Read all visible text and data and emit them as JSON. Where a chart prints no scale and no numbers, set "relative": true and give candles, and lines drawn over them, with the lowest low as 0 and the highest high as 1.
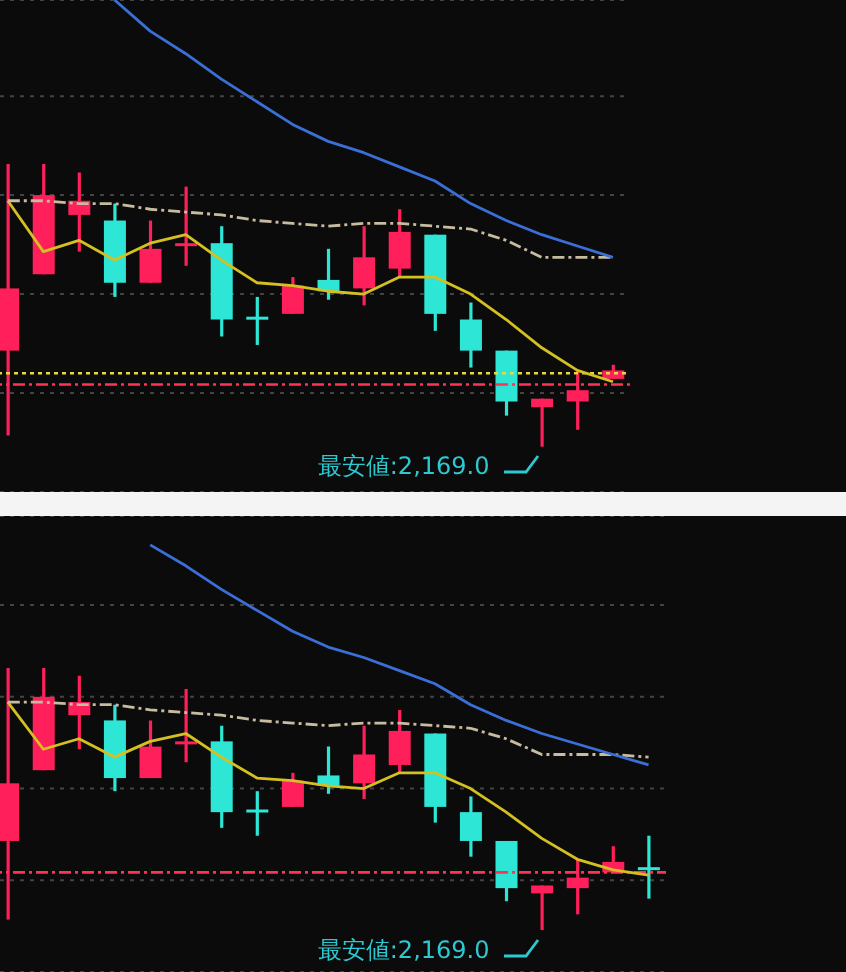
{
  "chart_data": [
    {
      "type": "candlestick",
      "relative": true,
      "grid": "y",
      "categories": [
        null,
        null,
        null,
        null,
        null,
        null,
        null,
        null,
        null,
        null,
        null,
        null,
        null,
        null,
        null,
        null,
        null,
        null
      ],
      "ohlc": [
        [
          0.34,
          1.0,
          0.04,
          0.56
        ],
        [
          0.61,
          1.0,
          0.61,
          0.89
        ],
        [
          0.82,
          0.97,
          0.69,
          0.87
        ],
        [
          0.8,
          0.86,
          0.53,
          0.58
        ],
        [
          0.58,
          0.8,
          0.58,
          0.7
        ],
        [
          0.71,
          0.92,
          0.64,
          0.72
        ],
        [
          0.72,
          0.78,
          0.39,
          0.45
        ],
        [
          0.46,
          0.53,
          0.36,
          0.45
        ],
        [
          0.47,
          0.6,
          0.47,
          0.57
        ],
        [
          0.59,
          0.7,
          0.52,
          0.55
        ],
        [
          0.56,
          0.78,
          0.5,
          0.67
        ],
        [
          0.63,
          0.84,
          0.6,
          0.76
        ],
        [
          0.75,
          0.75,
          0.41,
          0.47
        ],
        [
          0.45,
          0.51,
          0.28,
          0.34
        ],
        [
          0.34,
          0.34,
          0.11,
          0.16
        ],
        [
          0.14,
          0.17,
          0.0,
          0.17
        ],
        [
          0.16,
          0.27,
          0.06,
          0.2
        ],
        [
          0.24,
          0.29,
          0.24,
          0.27
        ]
      ],
      "colors": [
        "#ff1f5a",
        "#ff1f5a",
        "#ff1f5a",
        "#2ee6d6",
        "#ff1f5a",
        "#ff1f5a",
        "#2ee6d6",
        "#2ee6d6",
        "#ff1f5a",
        "#2ee6d6",
        "#ff1f5a",
        "#ff1f5a",
        "#2ee6d6",
        "#2ee6d6",
        "#2ee6d6",
        "#ff1f5a",
        "#ff1f5a",
        "#ff1f5a"
      ],
      "series": [
        {
          "type": "line",
          "color": "#d4c020",
          "line_style": "solid",
          "values": [
            0.87,
            0.69,
            0.73,
            0.66,
            0.72,
            0.75,
            0.66,
            0.58,
            0.57,
            0.55,
            0.54,
            0.6,
            0.6,
            0.54,
            0.45,
            0.35,
            0.27,
            0.23
          ]
        },
        {
          "type": "line",
          "color": "#c8bca0",
          "line_style": "dashed",
          "values": [
            0.87,
            0.87,
            0.86,
            0.86,
            0.84,
            0.83,
            0.82,
            0.8,
            0.79,
            0.78,
            0.79,
            0.79,
            0.78,
            0.77,
            0.73,
            0.67,
            0.67,
            0.67
          ]
        },
        {
          "type": "line",
          "color": "#3a6fd8",
          "line_style": "solid",
          "values": [
            null,
            null,
            null,
            1.58,
            1.47,
            1.39,
            1.3,
            1.22,
            1.14,
            1.08,
            1.04,
            0.99,
            0.94,
            0.86,
            0.8,
            0.75,
            0.71,
            0.67
          ]
        }
      ],
      "ref_lines": [
        {
          "axis": "y",
          "value": 0.26,
          "color": "#e8d840",
          "line_style": "dotted"
        },
        {
          "axis": "y",
          "value": 0.22,
          "color": "#ff3355",
          "line_style": "dashed"
        }
      ],
      "annotations": [
        "最安値:2,169.0"
      ]
    },
    {
      "type": "candlestick",
      "relative": true,
      "grid": "y",
      "categories": [
        null,
        null,
        null,
        null,
        null,
        null,
        null,
        null,
        null,
        null,
        null,
        null,
        null,
        null,
        null,
        null,
        null,
        null,
        null
      ],
      "ohlc": [
        [
          0.34,
          1.0,
          0.04,
          0.56
        ],
        [
          0.61,
          1.0,
          0.61,
          0.89
        ],
        [
          0.82,
          0.97,
          0.69,
          0.87
        ],
        [
          0.8,
          0.86,
          0.53,
          0.58
        ],
        [
          0.58,
          0.8,
          0.58,
          0.7
        ],
        [
          0.71,
          0.92,
          0.64,
          0.72
        ],
        [
          0.72,
          0.78,
          0.39,
          0.45
        ],
        [
          0.46,
          0.53,
          0.36,
          0.45
        ],
        [
          0.47,
          0.6,
          0.47,
          0.57
        ],
        [
          0.59,
          0.7,
          0.52,
          0.55
        ],
        [
          0.56,
          0.78,
          0.5,
          0.67
        ],
        [
          0.63,
          0.84,
          0.6,
          0.76
        ],
        [
          0.75,
          0.75,
          0.41,
          0.47
        ],
        [
          0.45,
          0.51,
          0.28,
          0.34
        ],
        [
          0.34,
          0.34,
          0.11,
          0.16
        ],
        [
          0.14,
          0.17,
          0.0,
          0.17
        ],
        [
          0.16,
          0.27,
          0.06,
          0.2
        ],
        [
          0.22,
          0.32,
          0.22,
          0.26
        ],
        [
          0.24,
          0.36,
          0.12,
          0.23
        ]
      ],
      "colors": [
        "#ff1f5a",
        "#ff1f5a",
        "#ff1f5a",
        "#2ee6d6",
        "#ff1f5a",
        "#ff1f5a",
        "#2ee6d6",
        "#2ee6d6",
        "#ff1f5a",
        "#2ee6d6",
        "#ff1f5a",
        "#ff1f5a",
        "#2ee6d6",
        "#2ee6d6",
        "#2ee6d6",
        "#ff1f5a",
        "#ff1f5a",
        "#ff1f5a",
        "#2ee6d6"
      ],
      "series": [
        {
          "type": "line",
          "color": "#d4c020",
          "line_style": "solid",
          "values": [
            0.87,
            0.69,
            0.73,
            0.66,
            0.72,
            0.75,
            0.66,
            0.58,
            0.57,
            0.55,
            0.54,
            0.6,
            0.6,
            0.54,
            0.45,
            0.35,
            0.27,
            0.23,
            0.21
          ]
        },
        {
          "type": "line",
          "color": "#c8bca0",
          "line_style": "dashed",
          "values": [
            0.87,
            0.87,
            0.86,
            0.86,
            0.84,
            0.83,
            0.82,
            0.8,
            0.79,
            0.78,
            0.79,
            0.79,
            0.78,
            0.77,
            0.73,
            0.67,
            0.67,
            0.67,
            0.66
          ]
        },
        {
          "type": "line",
          "color": "#3a6fd8",
          "line_style": "solid",
          "values": [
            null,
            null,
            null,
            null,
            1.47,
            1.39,
            1.3,
            1.22,
            1.14,
            1.08,
            1.04,
            0.99,
            0.94,
            0.86,
            0.8,
            0.75,
            0.71,
            0.67,
            0.63
          ]
        }
      ],
      "ref_lines": [
        {
          "axis": "y",
          "value": 0.22,
          "color": "#ff3355",
          "line_style": "dashed"
        }
      ],
      "annotations": [
        "最安値:2,169.0"
      ]
    }
  ]
}
